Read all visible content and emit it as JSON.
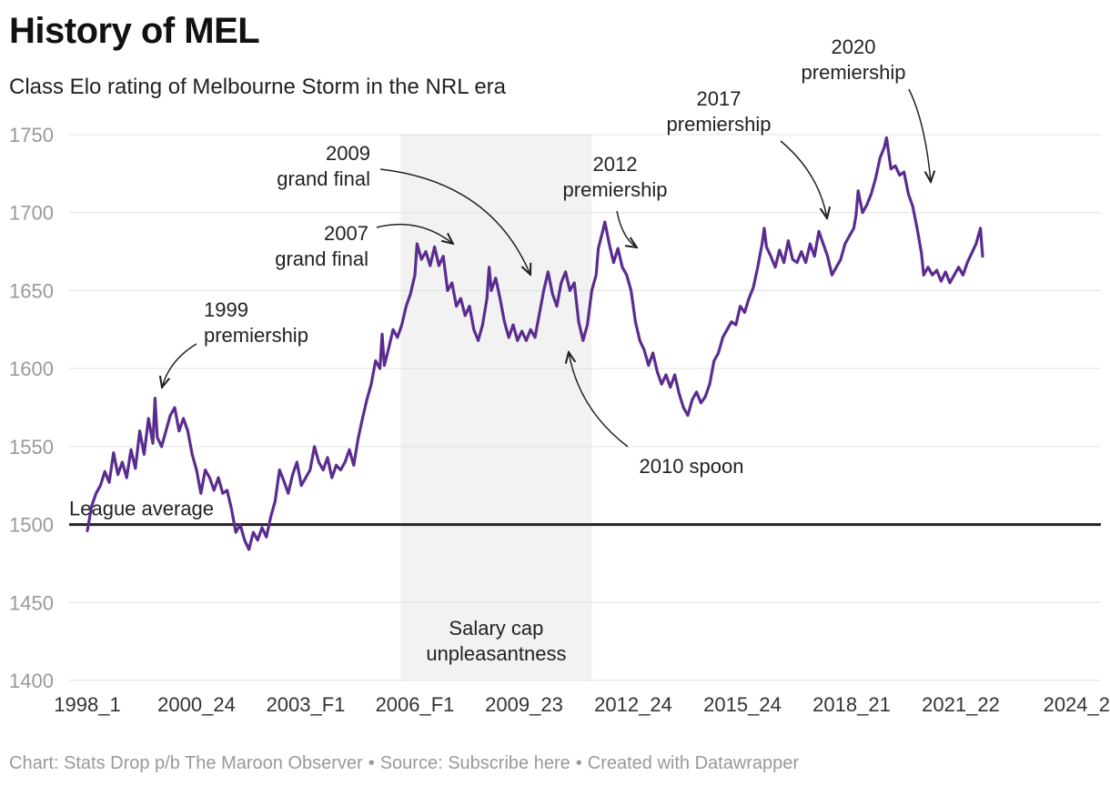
{
  "header": {
    "title": "History of MEL",
    "subtitle": "Class Elo rating of Melbourne Storm in the NRL era"
  },
  "footer": {
    "chart_credit": "Chart: Stats Drop p/b The Maroon Observer",
    "source": "Source: Subscribe here",
    "created": "Created with Datawrapper"
  },
  "colors": {
    "line": "#5b2c8f",
    "reference": "#222222",
    "shade": "#f2f2f2",
    "grid": "#e0e0e0",
    "tick": "#999999"
  },
  "chart_data": {
    "type": "line",
    "title": "History of MEL",
    "subtitle": "Class Elo rating of Melbourne Storm in the NRL era",
    "ylim": [
      1400,
      1750
    ],
    "yticks": [
      1400,
      1450,
      1500,
      1550,
      1600,
      1650,
      1700,
      1750
    ],
    "xrange": [
      0,
      925
    ],
    "grid": true,
    "x_tick_labels": [
      {
        "x": 0,
        "label": "1998_1"
      },
      {
        "x": 100,
        "label": "2000_24"
      },
      {
        "x": 200,
        "label": "2003_F1"
      },
      {
        "x": 300,
        "label": "2006_F1"
      },
      {
        "x": 400,
        "label": "2009_23"
      },
      {
        "x": 500,
        "label": "2012_24"
      },
      {
        "x": 600,
        "label": "2015_24"
      },
      {
        "x": 700,
        "label": "2018_21"
      },
      {
        "x": 800,
        "label": "2021_22"
      },
      {
        "x": 900,
        "label": "2024_2"
      }
    ],
    "reference_line": {
      "value": 1500,
      "label": "League average"
    },
    "shaded_region": {
      "x_start": 287,
      "x_end": 462,
      "label_lines": [
        "Salary cap",
        "unpleasantness"
      ]
    },
    "annotations": [
      {
        "lines": [
          "1999",
          "premiership"
        ],
        "x": 70,
        "y": 1581
      },
      {
        "lines": [
          "2007",
          "grand final"
        ],
        "x": 357,
        "y": 1680
      },
      {
        "lines": [
          "2009",
          "grand final"
        ],
        "x": 418,
        "y": 1656
      },
      {
        "lines": [
          "2010 spoon"
        ],
        "x": 455,
        "y": 1615
      },
      {
        "lines": [
          "2012",
          "premiership"
        ],
        "x": 530,
        "y": 1677
      },
      {
        "lines": [
          "2017",
          "premiership"
        ],
        "x": 695,
        "y": 1698
      },
      {
        "lines": [
          "2020",
          "premiership"
        ],
        "x": 790,
        "y": 1714
      }
    ],
    "series": [
      {
        "values": [
          [
            0,
            1496
          ],
          [
            4,
            1512
          ],
          [
            8,
            1520
          ],
          [
            12,
            1525
          ],
          [
            16,
            1534
          ],
          [
            20,
            1527
          ],
          [
            24,
            1546
          ],
          [
            28,
            1532
          ],
          [
            32,
            1540
          ],
          [
            36,
            1530
          ],
          [
            40,
            1548
          ],
          [
            44,
            1536
          ],
          [
            48,
            1560
          ],
          [
            52,
            1545
          ],
          [
            56,
            1568
          ],
          [
            60,
            1552
          ],
          [
            62,
            1581
          ],
          [
            64,
            1556
          ],
          [
            68,
            1550
          ],
          [
            72,
            1560
          ],
          [
            76,
            1570
          ],
          [
            80,
            1575
          ],
          [
            84,
            1560
          ],
          [
            88,
            1568
          ],
          [
            92,
            1560
          ],
          [
            96,
            1545
          ],
          [
            100,
            1535
          ],
          [
            104,
            1520
          ],
          [
            108,
            1535
          ],
          [
            112,
            1530
          ],
          [
            116,
            1522
          ],
          [
            120,
            1530
          ],
          [
            124,
            1520
          ],
          [
            128,
            1522
          ],
          [
            132,
            1510
          ],
          [
            136,
            1495
          ],
          [
            140,
            1500
          ],
          [
            144,
            1490
          ],
          [
            148,
            1484
          ],
          [
            152,
            1495
          ],
          [
            156,
            1490
          ],
          [
            160,
            1498
          ],
          [
            164,
            1492
          ],
          [
            168,
            1505
          ],
          [
            172,
            1515
          ],
          [
            176,
            1535
          ],
          [
            180,
            1528
          ],
          [
            184,
            1520
          ],
          [
            188,
            1532
          ],
          [
            192,
            1540
          ],
          [
            196,
            1525
          ],
          [
            200,
            1530
          ],
          [
            204,
            1535
          ],
          [
            208,
            1550
          ],
          [
            212,
            1540
          ],
          [
            216,
            1535
          ],
          [
            220,
            1543
          ],
          [
            224,
            1530
          ],
          [
            228,
            1538
          ],
          [
            232,
            1535
          ],
          [
            236,
            1540
          ],
          [
            240,
            1548
          ],
          [
            244,
            1538
          ],
          [
            248,
            1555
          ],
          [
            252,
            1568
          ],
          [
            256,
            1580
          ],
          [
            260,
            1590
          ],
          [
            264,
            1605
          ],
          [
            268,
            1600
          ],
          [
            270,
            1622
          ],
          [
            272,
            1602
          ],
          [
            276,
            1613
          ],
          [
            280,
            1625
          ],
          [
            284,
            1620
          ],
          [
            288,
            1628
          ],
          [
            292,
            1640
          ],
          [
            296,
            1648
          ],
          [
            300,
            1660
          ],
          [
            302,
            1680
          ],
          [
            306,
            1670
          ],
          [
            310,
            1675
          ],
          [
            314,
            1666
          ],
          [
            318,
            1678
          ],
          [
            322,
            1666
          ],
          [
            326,
            1672
          ],
          [
            330,
            1650
          ],
          [
            334,
            1655
          ],
          [
            338,
            1640
          ],
          [
            342,
            1645
          ],
          [
            346,
            1634
          ],
          [
            350,
            1640
          ],
          [
            354,
            1625
          ],
          [
            358,
            1618
          ],
          [
            362,
            1628
          ],
          [
            366,
            1645
          ],
          [
            368,
            1665
          ],
          [
            370,
            1650
          ],
          [
            374,
            1658
          ],
          [
            378,
            1645
          ],
          [
            382,
            1630
          ],
          [
            386,
            1620
          ],
          [
            390,
            1628
          ],
          [
            394,
            1618
          ],
          [
            398,
            1624
          ],
          [
            402,
            1618
          ],
          [
            406,
            1625
          ],
          [
            410,
            1620
          ],
          [
            414,
            1635
          ],
          [
            418,
            1650
          ],
          [
            422,
            1662
          ],
          [
            426,
            1648
          ],
          [
            430,
            1640
          ],
          [
            434,
            1655
          ],
          [
            438,
            1662
          ],
          [
            442,
            1650
          ],
          [
            446,
            1655
          ],
          [
            450,
            1630
          ],
          [
            454,
            1618
          ],
          [
            458,
            1628
          ],
          [
            462,
            1650
          ],
          [
            466,
            1660
          ],
          [
            468,
            1677
          ],
          [
            472,
            1688
          ],
          [
            474,
            1694
          ],
          [
            478,
            1680
          ],
          [
            482,
            1668
          ],
          [
            486,
            1677
          ],
          [
            490,
            1665
          ],
          [
            494,
            1660
          ],
          [
            498,
            1650
          ],
          [
            502,
            1630
          ],
          [
            506,
            1618
          ],
          [
            510,
            1612
          ],
          [
            514,
            1602
          ],
          [
            518,
            1610
          ],
          [
            522,
            1598
          ],
          [
            526,
            1590
          ],
          [
            530,
            1596
          ],
          [
            534,
            1588
          ],
          [
            538,
            1596
          ],
          [
            542,
            1584
          ],
          [
            546,
            1575
          ],
          [
            550,
            1570
          ],
          [
            554,
            1580
          ],
          [
            558,
            1585
          ],
          [
            562,
            1578
          ],
          [
            566,
            1582
          ],
          [
            570,
            1590
          ],
          [
            574,
            1605
          ],
          [
            578,
            1610
          ],
          [
            582,
            1620
          ],
          [
            586,
            1625
          ],
          [
            590,
            1630
          ],
          [
            594,
            1628
          ],
          [
            598,
            1640
          ],
          [
            602,
            1636
          ],
          [
            606,
            1645
          ],
          [
            610,
            1652
          ],
          [
            614,
            1665
          ],
          [
            618,
            1680
          ],
          [
            620,
            1690
          ],
          [
            622,
            1678
          ],
          [
            626,
            1672
          ],
          [
            630,
            1665
          ],
          [
            634,
            1676
          ],
          [
            638,
            1668
          ],
          [
            642,
            1682
          ],
          [
            646,
            1670
          ],
          [
            650,
            1668
          ],
          [
            654,
            1675
          ],
          [
            658,
            1668
          ],
          [
            662,
            1680
          ],
          [
            666,
            1672
          ],
          [
            670,
            1688
          ],
          [
            674,
            1680
          ],
          [
            678,
            1672
          ],
          [
            682,
            1660
          ],
          [
            686,
            1665
          ],
          [
            690,
            1670
          ],
          [
            694,
            1680
          ],
          [
            698,
            1685
          ],
          [
            702,
            1690
          ],
          [
            704,
            1698
          ],
          [
            706,
            1714
          ],
          [
            710,
            1700
          ],
          [
            714,
            1705
          ],
          [
            718,
            1712
          ],
          [
            722,
            1722
          ],
          [
            726,
            1735
          ],
          [
            730,
            1742
          ],
          [
            732,
            1748
          ],
          [
            736,
            1728
          ],
          [
            740,
            1730
          ],
          [
            744,
            1724
          ],
          [
            748,
            1726
          ],
          [
            752,
            1712
          ],
          [
            756,
            1704
          ],
          [
            760,
            1690
          ],
          [
            764,
            1674
          ],
          [
            766,
            1660
          ],
          [
            770,
            1665
          ],
          [
            774,
            1660
          ],
          [
            778,
            1663
          ],
          [
            782,
            1656
          ],
          [
            786,
            1662
          ],
          [
            790,
            1655
          ],
          [
            794,
            1660
          ],
          [
            798,
            1665
          ],
          [
            802,
            1660
          ],
          [
            806,
            1668
          ],
          [
            810,
            1674
          ],
          [
            814,
            1680
          ],
          [
            818,
            1690
          ],
          [
            820,
            1672
          ]
        ]
      }
    ]
  }
}
